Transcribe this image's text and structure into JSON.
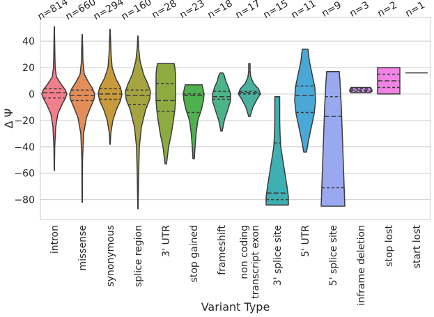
{
  "chart_data": {
    "type": "violin",
    "xlabel": "Variant Type",
    "ylabel": "Δ Ψ",
    "ylim": [
      -95,
      58
    ],
    "yticks": [
      40,
      20,
      0,
      -20,
      -40,
      -60,
      -80
    ],
    "ytick_labels": [
      "40",
      "20",
      "0",
      "−20",
      "−40",
      "−60",
      "−80"
    ],
    "grid": "horizontal",
    "categories": [
      {
        "label": "intron",
        "label_lines": [
          "intron"
        ],
        "count_label": "n=814",
        "color": "#f07f8c",
        "min": -58,
        "max": 51,
        "q1": -3,
        "median": 1,
        "q3": 4,
        "profile": [
          [
            -58,
            0.2
          ],
          [
            -40,
            0.6
          ],
          [
            -25,
            2.0
          ],
          [
            -15,
            5
          ],
          [
            -8,
            11
          ],
          [
            -3,
            16
          ],
          [
            0,
            18
          ],
          [
            3,
            16
          ],
          [
            8,
            9
          ],
          [
            13,
            3
          ],
          [
            20,
            1.2
          ],
          [
            30,
            0.8
          ],
          [
            40,
            0.5
          ],
          [
            51,
            0.2
          ]
        ]
      },
      {
        "label": "missense",
        "label_lines": [
          "missense"
        ],
        "count_label": "n=660",
        "color": "#e38e58",
        "min": -82,
        "max": 45,
        "q1": -5,
        "median": -1,
        "q3": 3,
        "profile": [
          [
            -82,
            0.2
          ],
          [
            -50,
            0.5
          ],
          [
            -30,
            2
          ],
          [
            -18,
            6
          ],
          [
            -10,
            12
          ],
          [
            -4,
            17
          ],
          [
            0,
            18
          ],
          [
            4,
            15
          ],
          [
            9,
            9
          ],
          [
            15,
            3
          ],
          [
            25,
            1
          ],
          [
            35,
            0.7
          ],
          [
            45,
            0.2
          ]
        ]
      },
      {
        "label": "synonymous",
        "label_lines": [
          "synonymous"
        ],
        "count_label": "n=294",
        "color": "#c79a3c",
        "min": -38,
        "max": 49,
        "q1": -4,
        "median": 0,
        "q3": 4,
        "profile": [
          [
            -38,
            0.3
          ],
          [
            -30,
            1
          ],
          [
            -20,
            4
          ],
          [
            -12,
            9
          ],
          [
            -5,
            15
          ],
          [
            0,
            17
          ],
          [
            5,
            15
          ],
          [
            12,
            8
          ],
          [
            20,
            3
          ],
          [
            30,
            1.5
          ],
          [
            40,
            0.8
          ],
          [
            49,
            0.2
          ]
        ]
      },
      {
        "label": "splice region",
        "label_lines": [
          "splice region"
        ],
        "count_label": "n=160",
        "color": "#a5a441",
        "min": -87,
        "max": 44,
        "q1": -8,
        "median": -1,
        "q3": 3,
        "profile": [
          [
            -87,
            0.2
          ],
          [
            -60,
            1
          ],
          [
            -40,
            2
          ],
          [
            -25,
            5
          ],
          [
            -12,
            11
          ],
          [
            -4,
            17
          ],
          [
            2,
            18
          ],
          [
            8,
            14
          ],
          [
            15,
            8
          ],
          [
            25,
            3
          ],
          [
            35,
            1
          ],
          [
            44,
            0.2
          ]
        ]
      },
      {
        "label": "3' UTR",
        "label_lines": [
          "3' UTR"
        ],
        "count_label": "n=28",
        "color": "#8eab41",
        "min": -53,
        "max": 23,
        "q1": -13,
        "median": -5,
        "q3": 8,
        "profile": [
          [
            -53,
            1
          ],
          [
            -40,
            4
          ],
          [
            -30,
            8
          ],
          [
            -20,
            11
          ],
          [
            -12,
            13
          ],
          [
            -5,
            14
          ],
          [
            0,
            14
          ],
          [
            8,
            14
          ],
          [
            15,
            14
          ],
          [
            20,
            13
          ],
          [
            23,
            12
          ]
        ]
      },
      {
        "label": "stop gained",
        "label_lines": [
          "stop gained"
        ],
        "count_label": "n=23",
        "color": "#4fb04f",
        "min": -49,
        "max": 7,
        "q1": -14,
        "median": -1,
        "q3": 0,
        "profile": [
          [
            -49,
            1
          ],
          [
            -40,
            2
          ],
          [
            -30,
            3.5
          ],
          [
            -20,
            6
          ],
          [
            -12,
            11
          ],
          [
            -5,
            14
          ],
          [
            0,
            15
          ],
          [
            5,
            13
          ],
          [
            7,
            12
          ]
        ]
      },
      {
        "label": "frameshift",
        "label_lines": [
          "frameshift"
        ],
        "count_label": "n=18",
        "color": "#4cb48b",
        "min": -28,
        "max": 16,
        "q1": -4,
        "median": -2,
        "q3": 2,
        "profile": [
          [
            -28,
            1
          ],
          [
            -20,
            4
          ],
          [
            -12,
            9
          ],
          [
            -5,
            13
          ],
          [
            0,
            13
          ],
          [
            5,
            10
          ],
          [
            10,
            6
          ],
          [
            14,
            4
          ],
          [
            16,
            2
          ]
        ]
      },
      {
        "label": "non coding transcript exon",
        "label_lines": [
          "non coding",
          "transcript exon"
        ],
        "count_label": "n=17",
        "color": "#48b29e",
        "min": -17,
        "max": 23,
        "q1": 0,
        "median": 1,
        "q3": 2,
        "profile": [
          [
            -17,
            1
          ],
          [
            -10,
            5
          ],
          [
            -4,
            11
          ],
          [
            0,
            16
          ],
          [
            4,
            13
          ],
          [
            8,
            6
          ],
          [
            13,
            2
          ],
          [
            18,
            1
          ],
          [
            23,
            1
          ]
        ]
      },
      {
        "label": "3' splice site",
        "label_lines": [
          "3' splice site"
        ],
        "count_label": "n=15",
        "color": "#3eafb2",
        "min": -84,
        "max": -2,
        "q1": -80,
        "median": -75,
        "q3": -37,
        "profile": [
          [
            -84,
            16
          ],
          [
            -78,
            16
          ],
          [
            -70,
            14
          ],
          [
            -60,
            11
          ],
          [
            -50,
            8
          ],
          [
            -40,
            5
          ],
          [
            -30,
            4
          ],
          [
            -20,
            3.5
          ],
          [
            -10,
            3.5
          ],
          [
            -2,
            3.5
          ]
        ]
      },
      {
        "label": "5' UTR",
        "label_lines": [
          "5' UTR"
        ],
        "count_label": "n=11",
        "color": "#49a8d6",
        "min": -44,
        "max": 34,
        "q1": -14,
        "median": -1,
        "q3": 6,
        "profile": [
          [
            -44,
            2
          ],
          [
            -35,
            5
          ],
          [
            -25,
            9
          ],
          [
            -15,
            13
          ],
          [
            -5,
            15
          ],
          [
            5,
            14
          ],
          [
            15,
            10
          ],
          [
            25,
            6
          ],
          [
            30,
            5
          ],
          [
            34,
            4
          ]
        ]
      },
      {
        "label": "5' splice site",
        "label_lines": [
          "5' splice site"
        ],
        "count_label": "n=9",
        "color": "#9aa9ef",
        "min": -85,
        "max": 17,
        "q1": -71,
        "median": -17,
        "q3": -2,
        "profile": [
          [
            -85,
            17
          ],
          [
            -70,
            16
          ],
          [
            -55,
            15
          ],
          [
            -40,
            14
          ],
          [
            -25,
            13
          ],
          [
            -10,
            12
          ],
          [
            0,
            11
          ],
          [
            10,
            10
          ],
          [
            17,
            9
          ]
        ]
      },
      {
        "label": "inframe deletion",
        "label_lines": [
          "inframe deletion"
        ],
        "count_label": "n=3",
        "color": "#cb8de9",
        "min": 1,
        "max": 5,
        "q1": 2,
        "median": 3,
        "q3": 4,
        "profile": [
          [
            1,
            14
          ],
          [
            2,
            16
          ],
          [
            3,
            16
          ],
          [
            4,
            15
          ],
          [
            5,
            14
          ]
        ]
      },
      {
        "label": "stop lost",
        "label_lines": [
          "stop lost"
        ],
        "count_label": "n=2",
        "color": "#f084e3",
        "min": 0,
        "max": 20,
        "q1": 5,
        "median": 10,
        "q3": 15,
        "profile": [
          [
            0,
            16
          ],
          [
            20,
            16
          ]
        ]
      },
      {
        "label": "start lost",
        "label_lines": [
          "start lost"
        ],
        "count_label": "n=1",
        "color": "#f07fb5",
        "min": 16,
        "max": 16,
        "q1": 16,
        "median": 16,
        "q3": 16,
        "profile": []
      }
    ]
  }
}
